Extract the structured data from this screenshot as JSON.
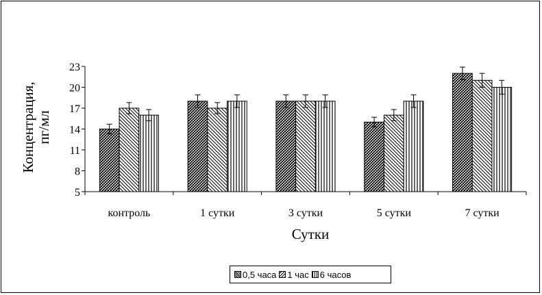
{
  "chart_data": {
    "type": "bar",
    "title": "",
    "xlabel": "Сутки",
    "ylabel_line1": "Концентрация,",
    "ylabel_line2": "пг/мл",
    "ylim": [
      5,
      23
    ],
    "yticks": [
      5,
      8,
      11,
      14,
      17,
      20,
      23
    ],
    "categories": [
      "контроль",
      "1 сутки",
      "3 сутки",
      "5 сутки",
      "7 сутки"
    ],
    "series": [
      {
        "name": "0,5 часа",
        "values": [
          14,
          18,
          18,
          15,
          22
        ],
        "errors": [
          0.7,
          0.9,
          0.9,
          0.7,
          0.9
        ]
      },
      {
        "name": "1 час",
        "values": [
          17,
          17,
          18,
          16,
          21
        ],
        "errors": [
          0.8,
          0.8,
          0.9,
          0.8,
          1.0
        ]
      },
      {
        "name": "6 часов",
        "values": [
          16,
          18,
          18,
          18,
          20
        ],
        "errors": [
          0.8,
          0.9,
          0.9,
          0.9,
          1.0
        ]
      }
    ],
    "legend_position": "bottom",
    "grid": false
  }
}
